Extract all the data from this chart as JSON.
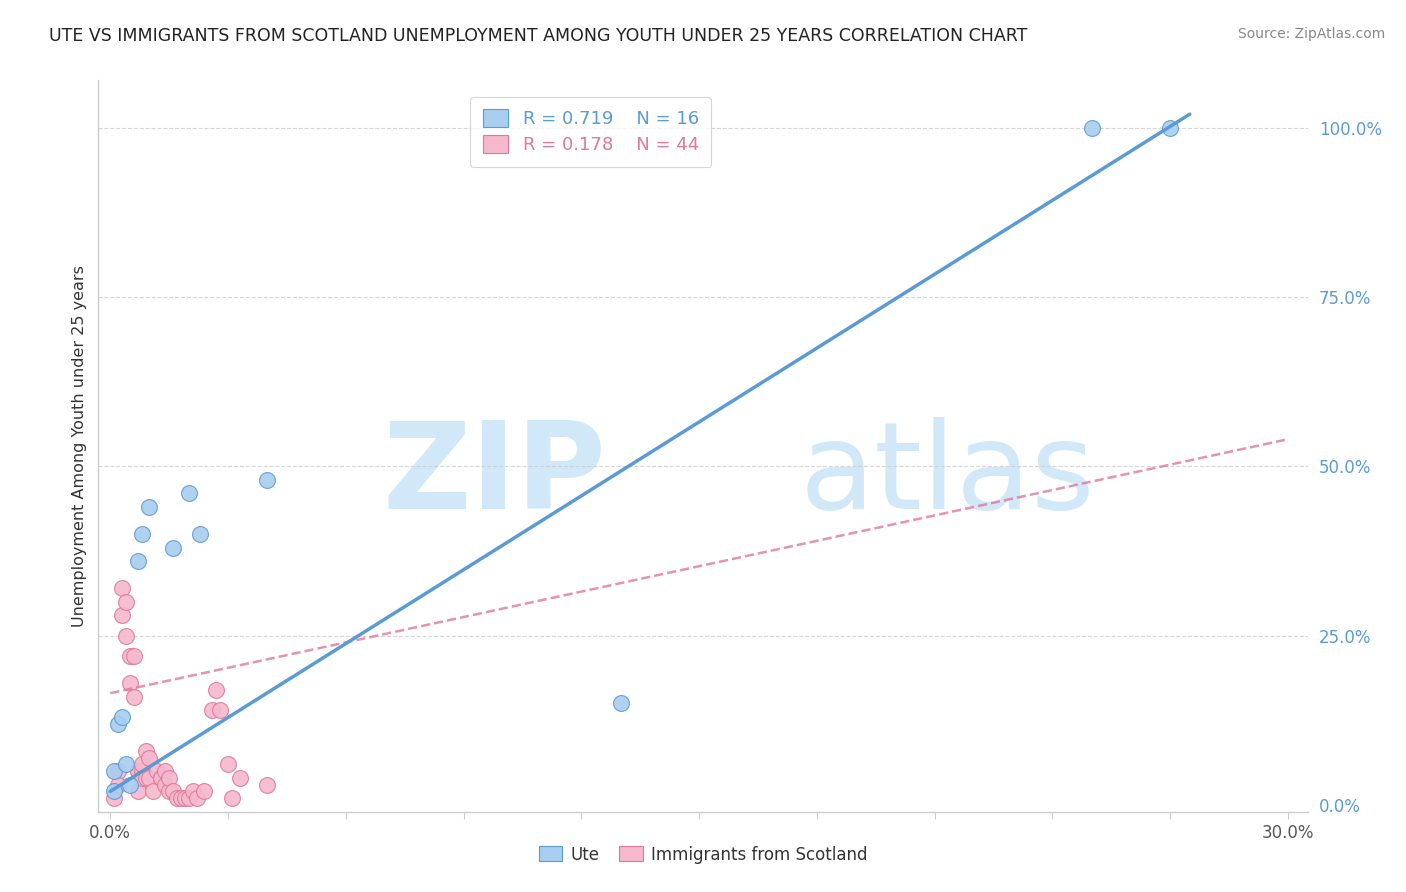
{
  "title": "UTE VS IMMIGRANTS FROM SCOTLAND UNEMPLOYMENT AMONG YOUTH UNDER 25 YEARS CORRELATION CHART",
  "source": "Source: ZipAtlas.com",
  "ylabel": "Unemployment Among Youth under 25 years",
  "xlim": [
    -0.003,
    0.305
  ],
  "ylim": [
    -0.01,
    1.07
  ],
  "blue_R": 0.719,
  "blue_N": 16,
  "pink_R": 0.178,
  "pink_N": 44,
  "blue_color": "#a8cef0",
  "pink_color": "#f5b8cc",
  "blue_edge_color": "#5b9bd5",
  "pink_edge_color": "#e07898",
  "blue_line_color": "#5b9bd5",
  "pink_line_color": "#e07898",
  "watermark_zip": "ZIP",
  "watermark_atlas": "atlas",
  "watermark_color": "#d0e8f8",
  "blue_scatter_x": [
    0.001,
    0.001,
    0.002,
    0.003,
    0.004,
    0.005,
    0.007,
    0.008,
    0.01,
    0.016,
    0.02,
    0.023,
    0.04,
    0.13,
    0.25,
    0.27
  ],
  "blue_scatter_y": [
    0.02,
    0.05,
    0.12,
    0.13,
    0.06,
    0.03,
    0.36,
    0.4,
    0.44,
    0.38,
    0.46,
    0.4,
    0.48,
    0.15,
    1.0,
    1.0
  ],
  "blue_line_x": [
    0.0,
    0.275
  ],
  "blue_line_y": [
    0.02,
    1.02
  ],
  "pink_scatter_x": [
    0.001,
    0.002,
    0.002,
    0.003,
    0.003,
    0.004,
    0.004,
    0.005,
    0.005,
    0.006,
    0.006,
    0.007,
    0.007,
    0.007,
    0.008,
    0.008,
    0.008,
    0.009,
    0.009,
    0.01,
    0.01,
    0.011,
    0.012,
    0.013,
    0.013,
    0.014,
    0.014,
    0.015,
    0.015,
    0.016,
    0.017,
    0.018,
    0.019,
    0.02,
    0.021,
    0.022,
    0.024,
    0.026,
    0.027,
    0.028,
    0.03,
    0.031,
    0.033,
    0.04
  ],
  "pink_scatter_y": [
    0.01,
    0.05,
    0.03,
    0.28,
    0.32,
    0.3,
    0.25,
    0.22,
    0.18,
    0.22,
    0.16,
    0.02,
    0.05,
    0.05,
    0.05,
    0.06,
    0.04,
    0.08,
    0.04,
    0.04,
    0.07,
    0.02,
    0.05,
    0.04,
    0.04,
    0.05,
    0.03,
    0.02,
    0.04,
    0.02,
    0.01,
    0.01,
    0.01,
    0.01,
    0.02,
    0.01,
    0.02,
    0.14,
    0.17,
    0.14,
    0.06,
    0.01,
    0.04,
    0.03
  ],
  "pink_line_x": [
    0.0,
    0.3
  ],
  "pink_line_y": [
    0.165,
    0.54
  ],
  "dashed_line_y1": 1.0,
  "dashed_line_y2": 0.75,
  "dashed_line_y3": 0.5,
  "dashed_line_y4": 0.25,
  "background_color": "#ffffff",
  "legend_R_blue": "R = 0.719",
  "legend_N_blue": "N = 16",
  "legend_R_pink": "R = 0.178",
  "legend_N_pink": "N = 44",
  "ytick_right_values": [
    0.0,
    0.25,
    0.5,
    0.75,
    1.0
  ],
  "ytick_right_labels": [
    "0.0%",
    "25.0%",
    "50.0%",
    "75.0%",
    "100.0%"
  ],
  "xtick_positions": [
    0.0,
    0.03,
    0.06,
    0.09,
    0.12,
    0.15,
    0.18,
    0.21,
    0.24,
    0.27,
    0.3
  ]
}
